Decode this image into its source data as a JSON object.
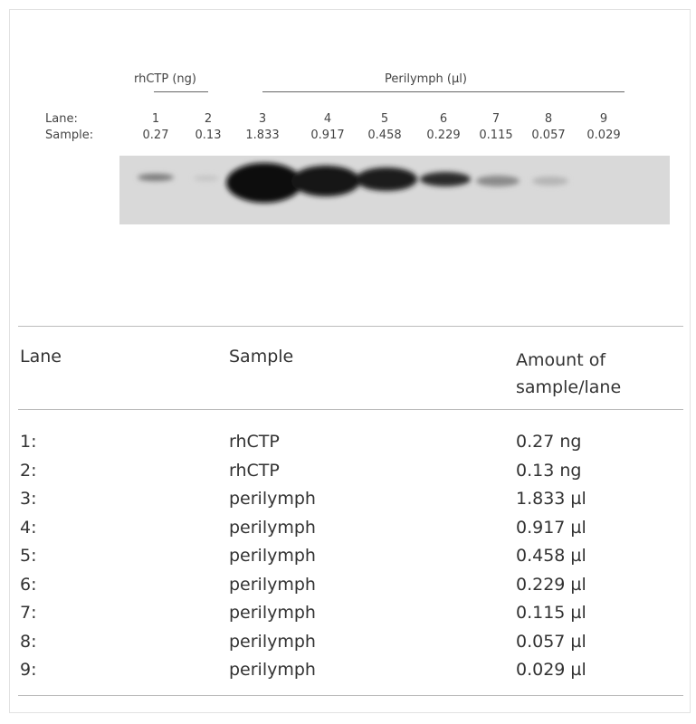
{
  "blot": {
    "groups": [
      "rhCTP (ng)",
      "Perilymph (µl)"
    ],
    "lane_label": "Lane:",
    "sample_label": "Sample:",
    "lanes": [
      "1",
      "2",
      "3",
      "4",
      "5",
      "6",
      "7",
      "8",
      "9"
    ],
    "samples": [
      "0.27",
      "0.13",
      "1.833",
      "0.917",
      "0.458",
      "0.229",
      "0.115",
      "0.057",
      "0.029"
    ]
  },
  "table": {
    "headers": [
      "Lane",
      "Sample",
      "Amount of sample/lane"
    ],
    "rows": [
      [
        "1:",
        "rhCTP",
        "0.27 ng"
      ],
      [
        "2:",
        "rhCTP",
        "0.13 ng"
      ],
      [
        "3:",
        "perilymph",
        "1.833 µl"
      ],
      [
        "4:",
        "perilymph",
        "0.917 µl"
      ],
      [
        "5:",
        "perilymph",
        "0.458 µl"
      ],
      [
        "6:",
        "perilymph",
        "0.229 µl"
      ],
      [
        "7:",
        "perilymph",
        "0.115 µl"
      ],
      [
        "8:",
        "perilymph",
        "0.057 µl"
      ],
      [
        "9:",
        "perilymph",
        "0.029 µl"
      ]
    ]
  }
}
